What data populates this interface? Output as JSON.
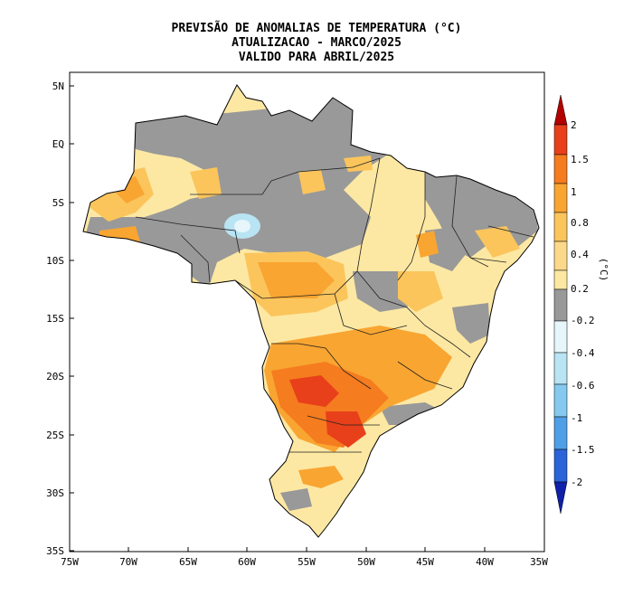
{
  "title": {
    "line1": "PREVISÃO DE ANOMALIAS DE TEMPERATURA (°C)",
    "line2": "ATUALIZACAO - MARCO/2025",
    "line3": "VALIDO PARA ABRIL/2025"
  },
  "axes": {
    "lat_labels": [
      "5N",
      "EQ",
      "5S",
      "10S",
      "15S",
      "20S",
      "25S",
      "30S",
      "35S"
    ],
    "lon_labels": [
      "75W",
      "70W",
      "65W",
      "60W",
      "55W",
      "50W",
      "45W",
      "40W",
      "35W"
    ]
  },
  "colorbar": {
    "unit": "(°C)",
    "labels": [
      "2",
      "1.5",
      "1",
      "0.8",
      "0.4",
      "0.2",
      "-0.2",
      "-0.4",
      "-0.6",
      "-1",
      "-1.5",
      "-2"
    ],
    "colors": {
      "gt2": "#b30000",
      "1.5_2": "#e8401a",
      "1_1.5": "#f57c1f",
      "0.8_1": "#f9a531",
      "0.4_0.8": "#fbc55c",
      "0.2_0.4": "#fde8a3",
      "neutral": "#999999",
      "m0.4_m0.2": "#e6f6fb",
      "m0.6_m0.4": "#b8e4f3",
      "m1_m0.6": "#86c9ee",
      "m1.5_m1": "#4f9fe6",
      "m2_m1.5": "#2b63d9",
      "lt_m2": "#1020a8"
    }
  }
}
